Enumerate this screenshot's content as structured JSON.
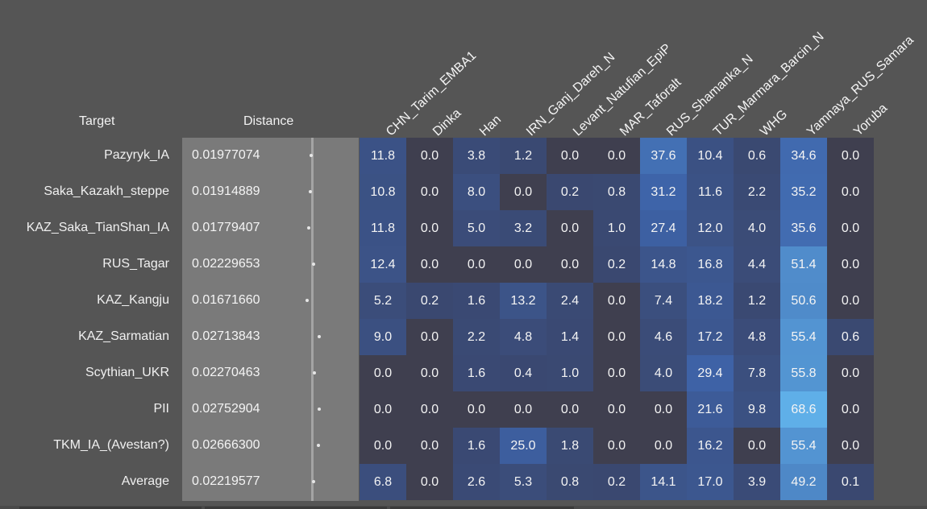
{
  "headers": {
    "target": "Target",
    "distance": "Distance"
  },
  "columns": [
    "CHN_Tarim_EMBA1",
    "Dinka",
    "Han",
    "IRN_Ganj_Dareh_N",
    "Levant_Natufian_EpiP",
    "MAR_Taforalt",
    "RUS_Shamanka_N",
    "TUR_Marmara_Barcin_N",
    "WHG",
    "Yamnaya_RUS_Samara",
    "Yoruba"
  ],
  "rows": [
    {
      "target": "Pazyryk_IA",
      "distance": "0.01977074",
      "values": [
        "11.8",
        "0.0",
        "3.8",
        "1.2",
        "0.0",
        "0.0",
        "37.6",
        "10.4",
        "0.6",
        "34.6",
        "0.0"
      ]
    },
    {
      "target": "Saka_Kazakh_steppe",
      "distance": "0.01914889",
      "values": [
        "10.8",
        "0.0",
        "8.0",
        "0.0",
        "0.2",
        "0.8",
        "31.2",
        "11.6",
        "2.2",
        "35.2",
        "0.0"
      ]
    },
    {
      "target": "KAZ_Saka_TianShan_IA",
      "distance": "0.01779407",
      "values": [
        "11.8",
        "0.0",
        "5.0",
        "3.2",
        "0.0",
        "1.0",
        "27.4",
        "12.0",
        "4.0",
        "35.6",
        "0.0"
      ]
    },
    {
      "target": "RUS_Tagar",
      "distance": "0.02229653",
      "values": [
        "12.4",
        "0.0",
        "0.0",
        "0.0",
        "0.0",
        "0.2",
        "14.8",
        "16.8",
        "4.4",
        "51.4",
        "0.0"
      ]
    },
    {
      "target": "KAZ_Kangju",
      "distance": "0.01671660",
      "values": [
        "5.2",
        "0.2",
        "1.6",
        "13.2",
        "2.4",
        "0.0",
        "7.4",
        "18.2",
        "1.2",
        "50.6",
        "0.0"
      ]
    },
    {
      "target": "KAZ_Sarmatian",
      "distance": "0.02713843",
      "values": [
        "9.0",
        "0.0",
        "2.2",
        "4.8",
        "1.4",
        "0.0",
        "4.6",
        "17.2",
        "4.8",
        "55.4",
        "0.6"
      ]
    },
    {
      "target": "Scythian_UKR",
      "distance": "0.02270463",
      "values": [
        "0.0",
        "0.0",
        "1.6",
        "0.4",
        "1.0",
        "0.0",
        "4.0",
        "29.4",
        "7.8",
        "55.8",
        "0.0"
      ]
    },
    {
      "target": "PII",
      "distance": "0.02752904",
      "values": [
        "0.0",
        "0.0",
        "0.0",
        "0.0",
        "0.0",
        "0.0",
        "0.0",
        "21.6",
        "9.8",
        "68.6",
        "0.0"
      ]
    },
    {
      "target": "TKM_IA_(Avestan?)",
      "distance": "0.02666300",
      "values": [
        "0.0",
        "0.0",
        "1.6",
        "25.0",
        "1.8",
        "0.0",
        "0.0",
        "16.2",
        "0.0",
        "55.4",
        "0.0"
      ]
    },
    {
      "target": "Average",
      "distance": "0.02219577",
      "values": [
        "6.8",
        "0.0",
        "2.6",
        "5.3",
        "0.8",
        "0.2",
        "14.1",
        "17.0",
        "3.9",
        "49.2",
        "0.1"
      ]
    }
  ],
  "colors": {
    "background": "#555555",
    "distance_panel": "#7a7a7a",
    "cell_zero": "#3f3f4f",
    "cell_low": "#3a4a75",
    "cell_mid": "#3d63a8",
    "cell_high": "#5fb0ea"
  }
}
